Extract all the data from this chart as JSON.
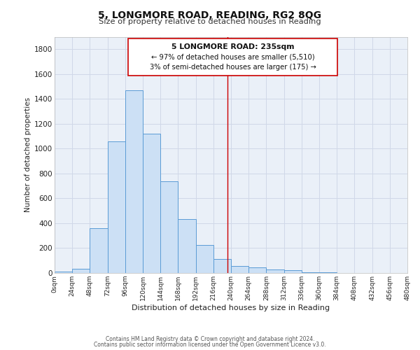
{
  "title": "5, LONGMORE ROAD, READING, RG2 8QG",
  "subtitle": "Size of property relative to detached houses in Reading",
  "xlabel": "Distribution of detached houses by size in Reading",
  "ylabel": "Number of detached properties",
  "bar_left_edges": [
    0,
    24,
    48,
    72,
    96,
    120,
    144,
    168,
    192,
    216,
    240,
    264,
    288,
    312,
    336,
    360,
    384,
    408,
    432,
    456
  ],
  "bar_heights": [
    10,
    35,
    360,
    1060,
    1470,
    1120,
    740,
    435,
    225,
    110,
    55,
    45,
    30,
    20,
    5,
    5,
    2,
    1,
    1,
    1
  ],
  "bin_width": 24,
  "bar_facecolor": "#cce0f5",
  "bar_edgecolor": "#5b9bd5",
  "grid_color": "#d0d8e8",
  "bg_color": "#eaf0f8",
  "property_line_x": 235,
  "property_line_color": "#cc0000",
  "annotation_title": "5 LONGMORE ROAD: 235sqm",
  "annotation_line1": "← 97% of detached houses are smaller (5,510)",
  "annotation_line2": "3% of semi-detached houses are larger (175) →",
  "annotation_box_edgecolor": "#cc0000",
  "annotation_box_facecolor": "#ffffff",
  "ylim": [
    0,
    1900
  ],
  "xlim": [
    0,
    480
  ],
  "yticks": [
    0,
    200,
    400,
    600,
    800,
    1000,
    1200,
    1400,
    1600,
    1800
  ],
  "tick_interval": 24,
  "tick_labels": [
    "0sqm",
    "24sqm",
    "48sqm",
    "72sqm",
    "96sqm",
    "120sqm",
    "144sqm",
    "168sqm",
    "192sqm",
    "216sqm",
    "240sqm",
    "264sqm",
    "288sqm",
    "312sqm",
    "336sqm",
    "360sqm",
    "384sqm",
    "408sqm",
    "432sqm",
    "456sqm",
    "480sqm"
  ],
  "footer_line1": "Contains HM Land Registry data © Crown copyright and database right 2024.",
  "footer_line2": "Contains public sector information licensed under the Open Government Licence v3.0."
}
